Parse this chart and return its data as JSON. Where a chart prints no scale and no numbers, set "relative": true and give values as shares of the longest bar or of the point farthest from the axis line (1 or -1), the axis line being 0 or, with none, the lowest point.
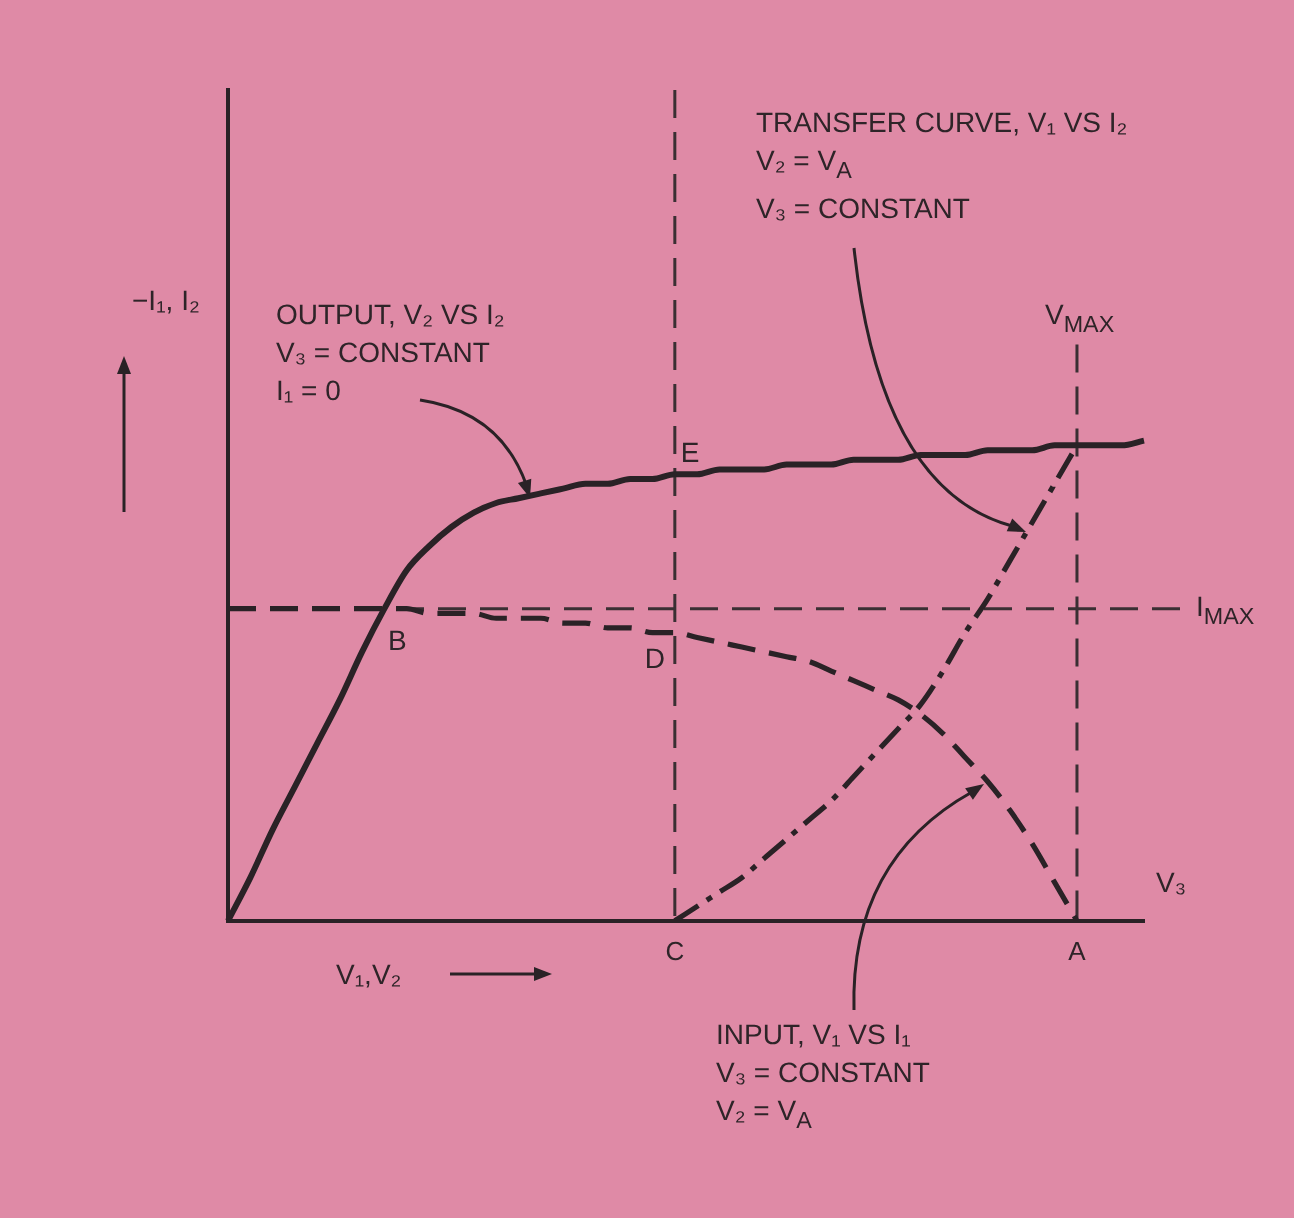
{
  "chart_data": {
    "type": "line",
    "relative": true,
    "marker": "none",
    "legend": false,
    "xlabel": "V₁,V₂",
    "ylabel": "−I₁, I₂",
    "categories": [
      null,
      null,
      null,
      null,
      null,
      null,
      null,
      null,
      null,
      null,
      null,
      null,
      null,
      null,
      null,
      null,
      null,
      null,
      null,
      null,
      "C",
      null,
      null,
      null,
      null,
      null,
      null,
      null,
      null,
      null,
      null,
      null,
      null,
      null,
      null,
      null,
      null,
      null,
      "A",
      null,
      null,
      null
    ],
    "series": [
      {
        "color": "#2a2226",
        "line_style": "solid",
        "values": [
          0,
          0.09,
          0.19,
          0.28,
          0.37,
          0.46,
          0.56,
          0.65,
          0.73,
          0.78,
          0.82,
          0.85,
          0.87,
          0.88,
          0.89,
          0.9,
          0.91,
          0.91,
          0.92,
          0.92,
          0.93,
          0.93,
          0.94,
          0.94,
          0.94,
          0.95,
          0.95,
          0.95,
          0.96,
          0.96,
          0.96,
          0.97,
          0.97,
          0.97,
          0.98,
          0.98,
          0.98,
          0.99,
          0.99,
          0.99,
          0.99,
          1
        ]
      },
      {
        "color": "#2a2226",
        "line_style": "dashed",
        "values": [
          0.65,
          0.65,
          0.65,
          0.65,
          0.65,
          0.65,
          0.65,
          0.65,
          0.65,
          0.64,
          0.64,
          0.64,
          0.63,
          0.63,
          0.63,
          0.62,
          0.62,
          0.61,
          0.61,
          0.6,
          0.6,
          0.59,
          0.58,
          0.57,
          0.56,
          0.55,
          0.54,
          0.52,
          0.5,
          0.48,
          0.46,
          0.43,
          0.39,
          0.34,
          0.29,
          0.23,
          0.16,
          0.08,
          0,
          null,
          null,
          null
        ]
      },
      {
        "color": "#2a2226",
        "line_style": "dashdot",
        "values": [
          null,
          null,
          null,
          null,
          null,
          null,
          null,
          null,
          null,
          null,
          null,
          null,
          null,
          null,
          null,
          null,
          null,
          null,
          null,
          null,
          0,
          0.03,
          0.06,
          0.09,
          0.13,
          0.17,
          0.21,
          0.25,
          0.3,
          0.35,
          0.4,
          0.45,
          0.52,
          0.6,
          0.67,
          0.75,
          0.83,
          0.91,
          0.99,
          null,
          null,
          null
        ]
      }
    ],
    "ref_lines": [
      {
        "axis": "x",
        "value": "C",
        "color": "#3a2f33",
        "line_style": "dashed"
      },
      {
        "axis": "x",
        "value": "A",
        "label": "V$_{MAX}$",
        "color": "#3a2f33",
        "line_style": "dashed"
      },
      {
        "axis": "y",
        "value": 0.65,
        "label": "I$_{MAX}$",
        "color": "#3a2f33",
        "line_style": "dashed"
      }
    ],
    "annotations": [
      "OUTPUT, V₂ VS I₂\nV₃ = CONSTANT\nI₁ = 0",
      "TRANSFER CURVE, V₁ VS I₂\nV₂ = V$_{A}$\nV₃ = CONSTANT",
      "INPUT, V₁ VS I₁\nV₃ = CONSTANT\nV₂ = V$_{A}$",
      "B",
      "V₃",
      {
        "text": "D",
        "x": "C",
        "y": 0.6
      },
      {
        "text": "E",
        "x": "C",
        "y": 0.93
      }
    ]
  }
}
